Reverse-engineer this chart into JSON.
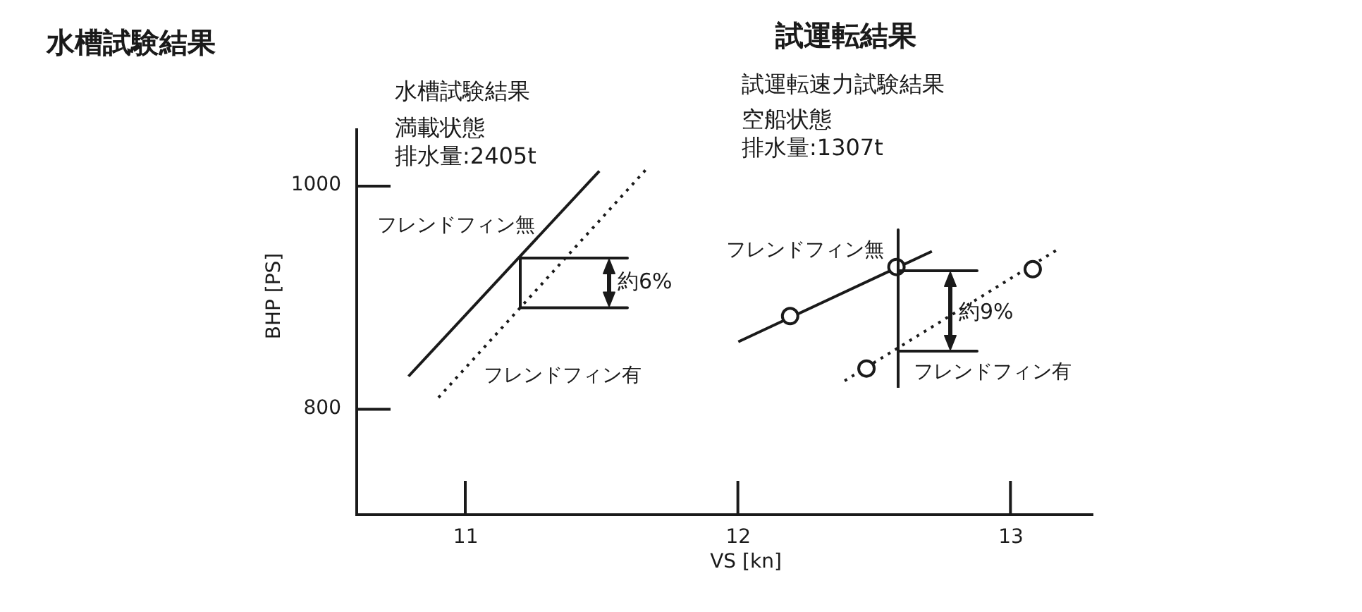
{
  "chart_data": {
    "type": "line",
    "title": "水槽試験結果",
    "xlabel": "VS [kn]",
    "ylabel": "BHP [PS]",
    "series": [
      {
        "name": "フレンドフィン無",
        "color": "#1a1a1a",
        "line_style": "solid",
        "marker": "none",
        "x": [
          10.79,
          11.49
        ],
        "values": [
          829,
          1013
        ]
      },
      {
        "name": "フレンドフィン有",
        "color": "#1a1a1a",
        "line_style": "dotted",
        "marker": "none",
        "x": [
          10.9,
          11.66
        ],
        "values": [
          810,
          1014
        ]
      },
      {
        "name": "フレンドフィン無",
        "color": "#1a1a1a",
        "line_style": "solid",
        "marker": "none",
        "x": [
          12.0,
          12.71
        ],
        "values": [
          860,
          941
        ]
      },
      {
        "name": "フレンドフィン有",
        "color": "#1a1a1a",
        "line_style": "dotted",
        "marker": "none",
        "x": [
          12.39,
          13.18
        ],
        "values": [
          825,
          944
        ]
      },
      {
        "type": "scatter",
        "color": "#1a1a1a",
        "marker": "circle",
        "x": [
          12.19,
          12.58
        ],
        "values": [
          883,
          927
        ]
      },
      {
        "type": "scatter",
        "color": "#1a1a1a",
        "marker": "circle",
        "x": [
          12.47,
          13.08
        ],
        "values": [
          836,
          925
        ]
      }
    ],
    "xlim": [
      10.6,
      13.3
    ],
    "xticks": [
      11,
      12,
      13
    ],
    "ylim": [
      705,
      1050
    ],
    "yticks": [
      800,
      1000
    ],
    "annotations": [
      "試運転結果",
      "水槽試験結果",
      "満載状態",
      "排水量:2405t",
      "試運転速力試験結果",
      "空船状態",
      "排水量:1307t",
      {
        "text": "約6%",
        "x": 11.2,
        "y": 935
      },
      "約9%"
    ]
  }
}
